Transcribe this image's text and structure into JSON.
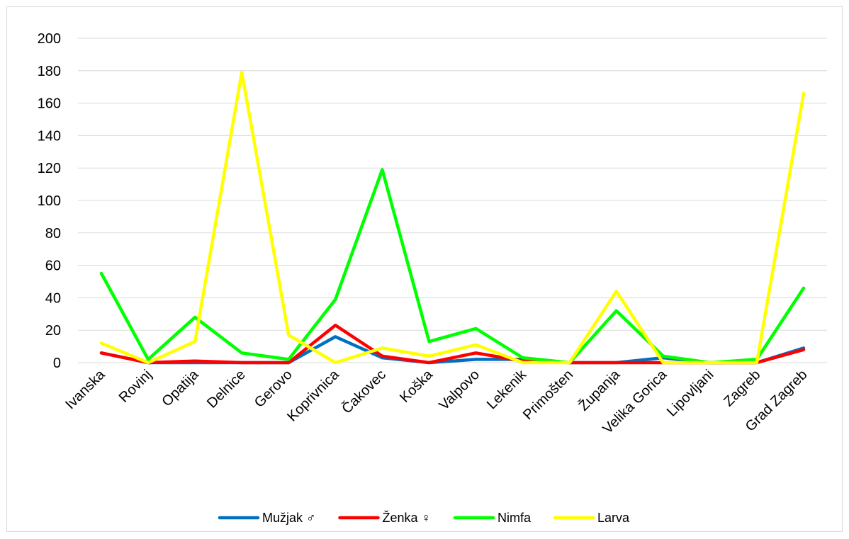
{
  "chart_data": {
    "type": "line",
    "title": "",
    "xlabel": "",
    "ylabel": "",
    "categories": [
      "Ivanska",
      "Rovinj",
      "Opatija",
      "Delnice",
      "Gerovo",
      "Koprivnica",
      "Čakovec",
      "Koška",
      "Valpovo",
      "Lekenik",
      "Primošten",
      "Županja",
      "Velika Gorica",
      "Lipovljani",
      "Zagreb",
      "Grad Zagreb"
    ],
    "ylim": [
      0,
      200
    ],
    "yticks": [
      0,
      20,
      40,
      60,
      80,
      100,
      120,
      140,
      160,
      180,
      200
    ],
    "grid": "horizontal",
    "legend_position": "bottom",
    "series": [
      {
        "name": "Mužjak ♂",
        "color": "#0070c0",
        "values": [
          6,
          0,
          0,
          0,
          0,
          16,
          3,
          0,
          2,
          2,
          0,
          0,
          3,
          0,
          0,
          9
        ]
      },
      {
        "name": "Ženka ♀",
        "color": "#ff0000",
        "values": [
          6,
          0,
          1,
          0,
          0,
          23,
          4,
          0,
          6,
          1,
          0,
          0,
          0,
          0,
          0,
          8
        ]
      },
      {
        "name": "Nimfa",
        "color": "#00ff00",
        "values": [
          55,
          2,
          28,
          6,
          2,
          39,
          119,
          13,
          21,
          3,
          0,
          32,
          4,
          0,
          2,
          46
        ]
      },
      {
        "name": "Larva",
        "color": "#ffff00",
        "values": [
          12,
          0,
          13,
          179,
          17,
          0,
          9,
          4,
          11,
          0,
          0,
          44,
          0,
          0,
          0,
          166
        ]
      }
    ]
  }
}
